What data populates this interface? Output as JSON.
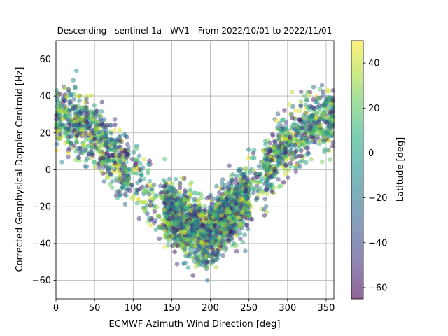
{
  "chart_data": {
    "type": "scatter",
    "title": "Descending - sentinel-1a - WV1 - From 2022/10/01 to 2022/11/01",
    "xlabel": "ECMWF Azimuth Wind Direction [deg]",
    "ylabel": "Corrected Geophysical Doppler Centroid [Hz]",
    "xlim": [
      0,
      360
    ],
    "ylim": [
      -70,
      70
    ],
    "xticks": [
      "0",
      "50",
      "100",
      "150",
      "200",
      "250",
      "300",
      "350"
    ],
    "yticks": [
      "−60",
      "−40",
      "−20",
      "0",
      "20",
      "40",
      "60"
    ],
    "grid": true,
    "colorbar": {
      "label": "Latitude [deg]",
      "range": [
        -65,
        50
      ],
      "ticks": [
        "−60",
        "−40",
        "−20",
        "0",
        "20",
        "40"
      ],
      "colormap": "viridis"
    },
    "point_alpha": 0.5,
    "trend": {
      "description": "V-shaped cloud; about 25-35 Hz near 0/360 deg, minimum about -35 Hz near 195 deg",
      "x": [
        0,
        30,
        60,
        90,
        120,
        150,
        180,
        195,
        210,
        240,
        270,
        300,
        330,
        360
      ],
      "y": [
        28,
        25,
        15,
        0,
        -14,
        -24,
        -32,
        -35,
        -30,
        -18,
        -2,
        14,
        24,
        30
      ]
    }
  }
}
